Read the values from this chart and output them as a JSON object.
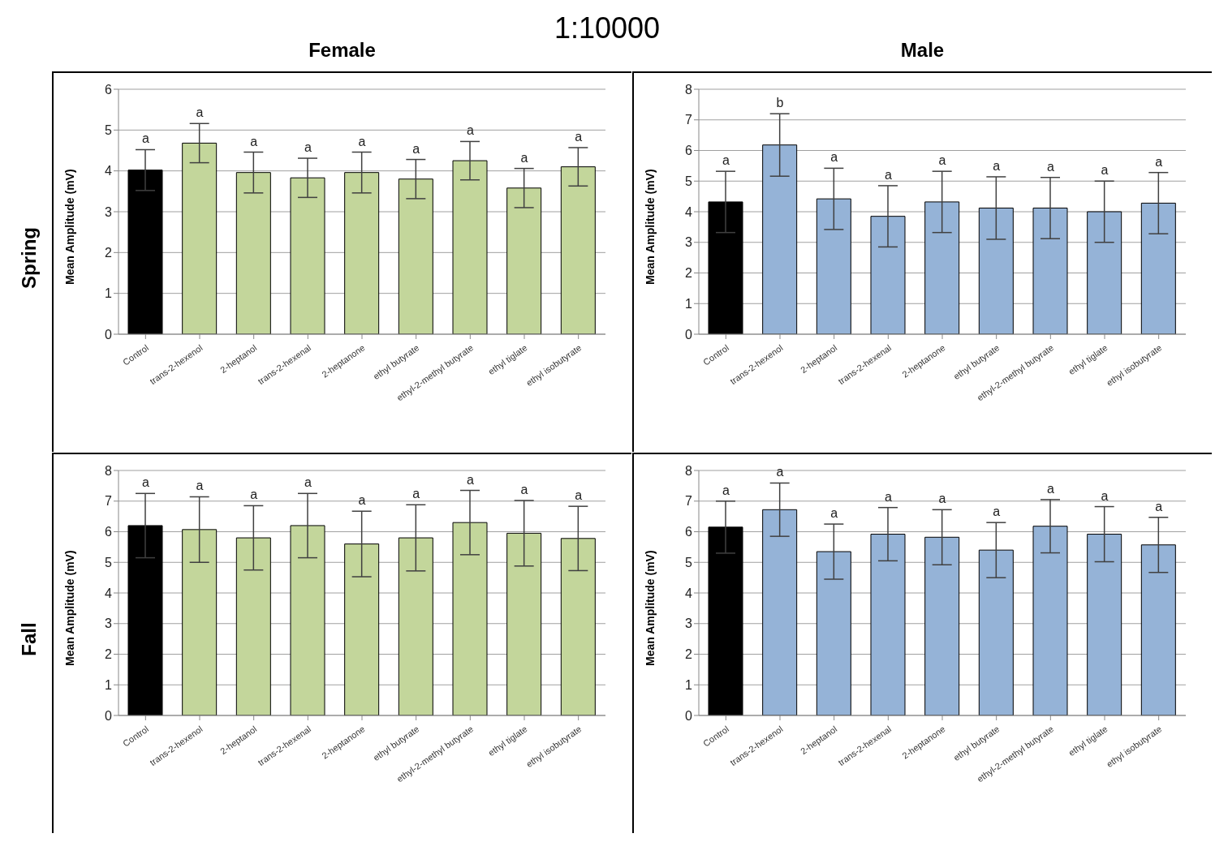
{
  "chart_data": [
    {
      "type": "bar",
      "title": "Female",
      "ylabel": "Mean Amplitude (mV)",
      "categories": [
        "Control",
        "trans-2-hexenol",
        "2-heptanol",
        "trans-2-hexenal",
        "2-heptanone",
        "ethyl butyrate",
        "ethyl-2-methyl butyrate",
        "ethyl tiglate",
        "ethyl isobutyrate"
      ],
      "values": [
        4.02,
        4.68,
        3.96,
        3.83,
        3.96,
        3.8,
        4.25,
        3.58,
        4.1
      ],
      "errors": [
        0.5,
        0.48,
        0.5,
        0.48,
        0.5,
        0.48,
        0.47,
        0.48,
        0.47
      ],
      "colors": [
        "#000000",
        "#c3d69b",
        "#c3d69b",
        "#c3d69b",
        "#c3d69b",
        "#c3d69b",
        "#c3d69b",
        "#c3d69b",
        "#c3d69b"
      ],
      "ylim": [
        0,
        6
      ],
      "yticks": [
        0,
        1,
        2,
        3,
        4,
        5,
        6
      ],
      "grid": "y",
      "annotations": [
        "1:10000",
        "Spring",
        {
          "text": "a",
          "x": "Control",
          "y": 4.52
        },
        {
          "text": "a",
          "x": "trans-2-hexenol",
          "y": 5.16
        },
        {
          "text": "a",
          "x": "2-heptanol",
          "y": 4.46
        },
        {
          "text": "a",
          "x": "trans-2-hexenal",
          "y": 4.31
        },
        {
          "text": "a",
          "x": "2-heptanone",
          "y": 4.46
        },
        {
          "text": "a",
          "x": "ethyl butyrate",
          "y": 4.28
        },
        {
          "text": "a",
          "x": "ethyl-2-methyl butyrate",
          "y": 4.72
        },
        {
          "text": "a",
          "x": "ethyl tiglate",
          "y": 4.06
        },
        {
          "text": "a",
          "x": "ethyl isobutyrate",
          "y": 4.57
        }
      ]
    },
    {
      "type": "bar",
      "title": "Male",
      "ylabel": "Mean Amplitude (mV)",
      "categories": [
        "Control",
        "trans-2-hexenol",
        "2-heptanol",
        "trans-2-hexenal",
        "2-heptanone",
        "ethyl butyrate",
        "ethyl-2-methyl butyrate",
        "ethyl tiglate",
        "ethyl isobutyrate"
      ],
      "values": [
        4.32,
        6.18,
        4.42,
        3.85,
        4.32,
        4.12,
        4.12,
        4.0,
        4.28
      ],
      "errors": [
        1.0,
        1.02,
        1.0,
        1.0,
        1.0,
        1.02,
        1.0,
        1.0,
        1.0
      ],
      "colors": [
        "#000000",
        "#95b3d7",
        "#95b3d7",
        "#95b3d7",
        "#95b3d7",
        "#95b3d7",
        "#95b3d7",
        "#95b3d7",
        "#95b3d7"
      ],
      "ylim": [
        0,
        8
      ],
      "yticks": [
        0,
        1,
        2,
        3,
        4,
        5,
        6,
        7,
        8
      ],
      "grid": "y",
      "annotations": [
        {
          "text": "a",
          "x": "Control",
          "y": 5.32
        },
        {
          "text": "b",
          "x": "trans-2-hexenol",
          "y": 7.2
        },
        {
          "text": "a",
          "x": "2-heptanol",
          "y": 5.42
        },
        {
          "text": "a",
          "x": "trans-2-hexenal",
          "y": 4.85
        },
        {
          "text": "a",
          "x": "2-heptanone",
          "y": 5.32
        },
        {
          "text": "a",
          "x": "ethyl butyrate",
          "y": 5.14
        },
        {
          "text": "a",
          "x": "ethyl-2-methyl butyrate",
          "y": 5.12
        },
        {
          "text": "a",
          "x": "ethyl tiglate",
          "y": 5.0
        },
        {
          "text": "a",
          "x": "ethyl isobutyrate",
          "y": 5.28
        }
      ]
    },
    {
      "type": "bar",
      "ylabel": "Mean Amplitude (mV)",
      "categories": [
        "Control",
        "trans-2-hexenol",
        "2-heptanol",
        "trans-2-hexenal",
        "2-heptanone",
        "ethyl butyrate",
        "ethyl-2-methyl butyrate",
        "ethyl tiglate",
        "ethyl isobutyrate"
      ],
      "values": [
        6.2,
        6.07,
        5.8,
        6.2,
        5.6,
        5.8,
        6.3,
        5.95,
        5.78
      ],
      "errors": [
        1.05,
        1.07,
        1.05,
        1.05,
        1.07,
        1.08,
        1.05,
        1.07,
        1.05
      ],
      "colors": [
        "#000000",
        "#c3d69b",
        "#c3d69b",
        "#c3d69b",
        "#c3d69b",
        "#c3d69b",
        "#c3d69b",
        "#c3d69b",
        "#c3d69b"
      ],
      "ylim": [
        0,
        8
      ],
      "yticks": [
        0,
        1,
        2,
        3,
        4,
        5,
        6,
        7,
        8
      ],
      "grid": "y",
      "annotations": [
        "Fall",
        {
          "text": "a",
          "x": "Control",
          "y": 7.25
        },
        {
          "text": "a",
          "x": "trans-2-hexenol",
          "y": 7.14
        },
        {
          "text": "a",
          "x": "2-heptanol",
          "y": 6.85
        },
        {
          "text": "a",
          "x": "trans-2-hexenal",
          "y": 7.25
        },
        {
          "text": "a",
          "x": "2-heptanone",
          "y": 6.67
        },
        {
          "text": "a",
          "x": "ethyl butyrate",
          "y": 6.88
        },
        {
          "text": "a",
          "x": "ethyl-2-methyl butyrate",
          "y": 7.35
        },
        {
          "text": "a",
          "x": "ethyl tiglate",
          "y": 7.02
        },
        {
          "text": "a",
          "x": "ethyl isobutyrate",
          "y": 6.83
        }
      ]
    },
    {
      "type": "bar",
      "ylabel": "Mean Amplitude (mV)",
      "categories": [
        "Control",
        "trans-2-hexenol",
        "2-heptanol",
        "trans-2-hexenal",
        "2-heptanone",
        "ethyl butyrate",
        "ethyl-2-methyl butyrate",
        "ethyl tiglate",
        "ethyl isobutyrate"
      ],
      "values": [
        6.15,
        6.72,
        5.35,
        5.92,
        5.82,
        5.4,
        6.18,
        5.92,
        5.57
      ],
      "errors": [
        0.85,
        0.87,
        0.9,
        0.87,
        0.9,
        0.9,
        0.87,
        0.9,
        0.9
      ],
      "colors": [
        "#000000",
        "#95b3d7",
        "#95b3d7",
        "#95b3d7",
        "#95b3d7",
        "#95b3d7",
        "#95b3d7",
        "#95b3d7",
        "#95b3d7"
      ],
      "ylim": [
        0,
        8
      ],
      "yticks": [
        0,
        1,
        2,
        3,
        4,
        5,
        6,
        7,
        8
      ],
      "grid": "y",
      "annotations": [
        {
          "text": "a",
          "x": "Control",
          "y": 7.0
        },
        {
          "text": "a",
          "x": "trans-2-hexenol",
          "y": 7.59
        },
        {
          "text": "a",
          "x": "2-heptanol",
          "y": 6.25
        },
        {
          "text": "a",
          "x": "trans-2-hexenal",
          "y": 6.79
        },
        {
          "text": "a",
          "x": "2-heptanone",
          "y": 6.72
        },
        {
          "text": "a",
          "x": "ethyl butyrate",
          "y": 6.3
        },
        {
          "text": "a",
          "x": "ethyl-2-methyl butyrate",
          "y": 7.05
        },
        {
          "text": "a",
          "x": "ethyl tiglate",
          "y": 6.82
        },
        {
          "text": "a",
          "x": "ethyl isobutyrate",
          "y": 6.47
        }
      ]
    }
  ]
}
